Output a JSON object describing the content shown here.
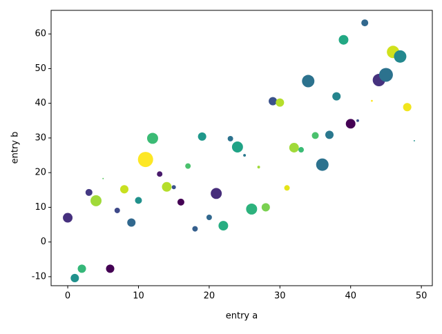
{
  "chart_data": {
    "type": "scatter",
    "x_label": "entry a",
    "y_label": "entry b",
    "x": [
      0,
      1,
      2,
      3,
      4,
      5,
      6,
      7,
      8,
      9,
      10,
      11,
      12,
      13,
      14,
      15,
      16,
      17,
      18,
      19,
      20,
      21,
      22,
      23,
      24,
      25,
      26,
      27,
      28,
      29,
      30,
      31,
      32,
      33,
      34,
      35,
      36,
      37,
      38,
      39,
      40,
      41,
      42,
      43,
      44,
      45,
      46,
      47,
      48,
      49
    ],
    "values": [
      7,
      -10.4,
      -7.7,
      14.3,
      11.9,
      18.3,
      -7.7,
      9.1,
      15.2,
      5.6,
      12,
      23.8,
      29.9,
      19.6,
      15.9,
      15.8,
      11.5,
      21.9,
      3.8,
      30.4,
      7.1,
      14,
      4.7,
      29.8,
      27.4,
      25,
      9.5,
      21.6,
      10,
      40.6,
      40.2,
      15.6,
      27.2,
      26.6,
      46.4,
      30.7,
      22.3,
      30.9,
      42,
      58.3,
      34.1,
      35,
      63.2,
      40.7,
      46.7,
      48.2,
      54.8,
      53.5,
      38.9,
      29.2
    ],
    "sizes": [
      101,
      75,
      75,
      52,
      132,
      2,
      75,
      33,
      75,
      75,
      52,
      251,
      132,
      33,
      101,
      19,
      52,
      33,
      33,
      75,
      33,
      132,
      101,
      33,
      132,
      8,
      132,
      8,
      75,
      75,
      75,
      33,
      101,
      33,
      168,
      52,
      168,
      75,
      75,
      101,
      101,
      8,
      52,
      4,
      168,
      207,
      168,
      168,
      75,
      2
    ],
    "colors": [
      "#46307e",
      "#21918c",
      "#35b779",
      "#443983",
      "#a0da39",
      "#5ec962",
      "#440154",
      "#3e4989",
      "#c8e020",
      "#31688e",
      "#21918c",
      "#fde725",
      "#3bbb75",
      "#481a6c",
      "#b5de2b",
      "#3b528b",
      "#440154",
      "#4ac16d",
      "#355f8d",
      "#1f988b",
      "#31688e",
      "#472d7b",
      "#27ad81",
      "#2c728e",
      "#20a386",
      "#2a788e",
      "#2db27d",
      "#a0da39",
      "#7ad151",
      "#3b528b",
      "#b5de2b",
      "#e5e419",
      "#a0da39",
      "#3bbb75",
      "#2c728e",
      "#4ac16d",
      "#2c728e",
      "#2a788e",
      "#25858e",
      "#22a884",
      "#440154",
      "#3b528b",
      "#31688e",
      "#fde725",
      "#46327e",
      "#2c728e",
      "#d0e11c",
      "#23888e",
      "#f1e51d",
      "#21918c"
    ],
    "xlim": [
      -2.35,
      51.55
    ],
    "ylim": [
      -12.6,
      66.8
    ],
    "xticks": [
      0,
      10,
      20,
      30,
      40,
      50
    ],
    "yticks": [
      -10,
      0,
      10,
      20,
      30,
      40,
      50,
      60
    ]
  }
}
